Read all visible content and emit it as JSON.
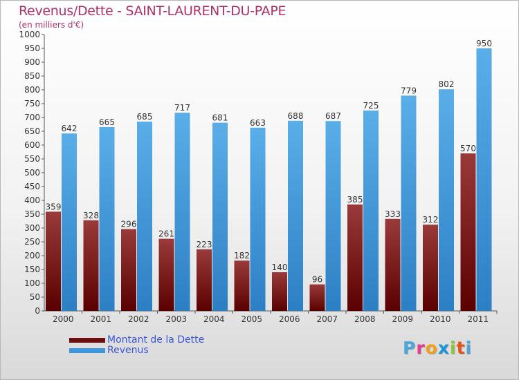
{
  "chart_title": "Revenus/Dette - SAINT-LAURENT-DU-PAPE",
  "chart_subtitle": "(en milliers d'€)",
  "logo": {
    "letters": [
      "P",
      "r",
      "o",
      "x",
      "i",
      "t",
      "i"
    ],
    "colors": [
      "#4aa6dc",
      "#e63c8c",
      "#f0a11c",
      "#1c94d8",
      "#8cc43c",
      "#e6541c",
      "#4aa6dc"
    ]
  },
  "legend": [
    {
      "label": "Montant de la Dette",
      "color": "#6e0d0d"
    },
    {
      "label": "Revenus",
      "color": "#3d97dc"
    }
  ],
  "chart_data": {
    "type": "bar",
    "categories": [
      "2000",
      "2001",
      "2002",
      "2003",
      "2004",
      "2005",
      "2006",
      "2007",
      "2008",
      "2009",
      "2010",
      "2011"
    ],
    "series": [
      {
        "name": "Montant de la Dette",
        "values": [
          359,
          328,
          296,
          261,
          223,
          182,
          140,
          96,
          385,
          333,
          312,
          570
        ]
      },
      {
        "name": "Revenus",
        "values": [
          642,
          665,
          685,
          717,
          681,
          663,
          688,
          687,
          725,
          779,
          802,
          950
        ]
      }
    ],
    "ylim": [
      0,
      1000
    ],
    "ytick_step": 50,
    "grid": false,
    "legend_position": "bottom-left"
  }
}
